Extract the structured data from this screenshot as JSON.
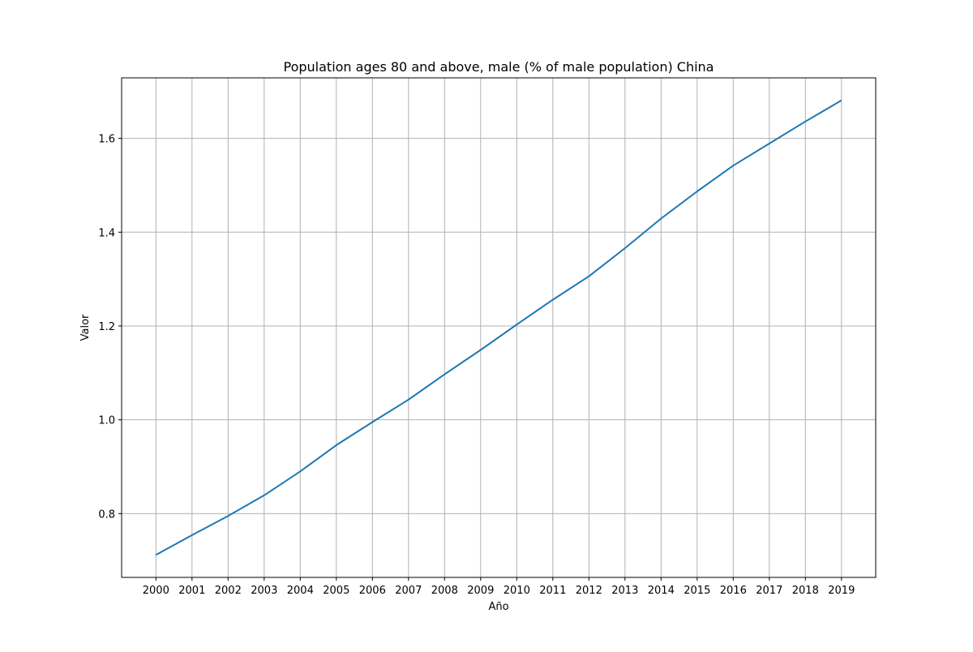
{
  "chart_data": {
    "type": "line",
    "title": "Population ages 80 and above, male (% of male population) China",
    "xlabel": "Año",
    "ylabel": "Valor",
    "x": [
      "2000",
      "2001",
      "2002",
      "2003",
      "2004",
      "2005",
      "2006",
      "2007",
      "2008",
      "2009",
      "2010",
      "2011",
      "2012",
      "2013",
      "2014",
      "2015",
      "2016",
      "2017",
      "2018",
      "2019"
    ],
    "series": [
      {
        "values": [
          0.712,
          0.754,
          0.795,
          0.839,
          0.89,
          0.946,
          0.995,
          1.043,
          1.097,
          1.149,
          1.203,
          1.256,
          1.306,
          1.366,
          1.429,
          1.487,
          1.542,
          1.589,
          1.636,
          1.681
        ]
      }
    ],
    "yticks": [
      0.8,
      1.0,
      1.2,
      1.4,
      1.6
    ],
    "ytick_labels": [
      "0.8",
      "1.0",
      "1.2",
      "1.4",
      "1.6"
    ],
    "ylim": [
      0.664,
      1.729
    ],
    "grid": true,
    "colors": {
      "line": "#1f77b4",
      "grid": "#b0b0b0",
      "axes": "#000000"
    }
  }
}
